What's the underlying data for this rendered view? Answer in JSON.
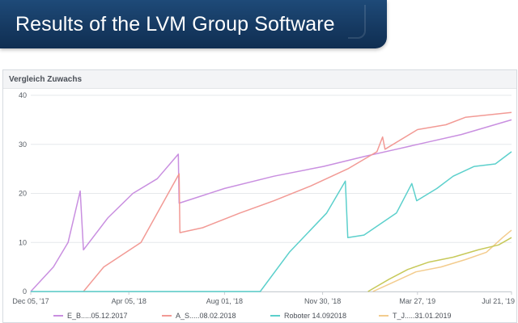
{
  "header": {
    "title": "Results of the LVM Group Software"
  },
  "panel": {
    "title": "Vergleich Zuwachs"
  },
  "chart_data": {
    "type": "line",
    "title": "Vergleich Zuwachs",
    "xlabel": "",
    "ylabel": "",
    "ylim": [
      0,
      40
    ],
    "yticks": [
      0,
      10,
      20,
      30,
      40
    ],
    "xlim": [
      "2017-12-05",
      "2019-07-21"
    ],
    "xticks": [
      {
        "date": "2017-12-05",
        "label": "Dec 05, '17"
      },
      {
        "date": "2018-04-05",
        "label": "Apr 05, '18"
      },
      {
        "date": "2018-08-01",
        "label": "Aug 01, '18"
      },
      {
        "date": "2018-11-30",
        "label": "Nov 30, '18"
      },
      {
        "date": "2019-03-27",
        "label": "Mar 27, '19"
      },
      {
        "date": "2019-07-21",
        "label": "Jul 21, '19"
      }
    ],
    "grid": true,
    "legend_position": "bottom",
    "series": [
      {
        "name": "E_B.....05.12.2017",
        "color": "#c98fe0",
        "points": [
          [
            "2017-12-05",
            0
          ],
          [
            "2018-01-02",
            5
          ],
          [
            "2018-01-20",
            10
          ],
          [
            "2018-02-04",
            20.5
          ],
          [
            "2018-02-08",
            8.5
          ],
          [
            "2018-03-10",
            15
          ],
          [
            "2018-04-10",
            20
          ],
          [
            "2018-05-10",
            23
          ],
          [
            "2018-06-05",
            28
          ],
          [
            "2018-06-06",
            18
          ],
          [
            "2018-08-01",
            21
          ],
          [
            "2018-10-01",
            23.5
          ],
          [
            "2018-12-01",
            25.5
          ],
          [
            "2019-01-20",
            27.5
          ],
          [
            "2019-03-01",
            29
          ],
          [
            "2019-04-10",
            30.5
          ],
          [
            "2019-05-20",
            32
          ],
          [
            "2019-07-21",
            35
          ]
        ]
      },
      {
        "name": "A_S.....08.02.2018",
        "color": "#f29a95",
        "points": [
          [
            "2018-02-08",
            0
          ],
          [
            "2018-03-05",
            5
          ],
          [
            "2018-04-20",
            10
          ],
          [
            "2018-06-06",
            24
          ],
          [
            "2018-06-07",
            12
          ],
          [
            "2018-07-05",
            13
          ],
          [
            "2018-08-20",
            16
          ],
          [
            "2018-10-01",
            18.5
          ],
          [
            "2018-11-15",
            21.5
          ],
          [
            "2018-12-31",
            25
          ],
          [
            "2019-02-05",
            28.5
          ],
          [
            "2019-02-12",
            31.5
          ],
          [
            "2019-02-15",
            29
          ],
          [
            "2019-03-27",
            33
          ],
          [
            "2019-05-01",
            34
          ],
          [
            "2019-05-25",
            35.5
          ],
          [
            "2019-07-21",
            36.5
          ]
        ]
      },
      {
        "name": "Roboter 14.092018",
        "color": "#5cd0cc",
        "points": [
          [
            "2017-12-05",
            0
          ],
          [
            "2018-09-14",
            0
          ],
          [
            "2018-10-20",
            8
          ],
          [
            "2018-12-05",
            16
          ],
          [
            "2018-12-28",
            22.5
          ],
          [
            "2018-12-31",
            11
          ],
          [
            "2019-01-20",
            11.5
          ],
          [
            "2019-03-01",
            16
          ],
          [
            "2019-03-20",
            22
          ],
          [
            "2019-03-26",
            18.5
          ],
          [
            "2019-04-20",
            21
          ],
          [
            "2019-05-10",
            23.5
          ],
          [
            "2019-06-05",
            25.5
          ],
          [
            "2019-07-01",
            26
          ],
          [
            "2019-07-21",
            28.5
          ]
        ]
      },
      {
        "name": "T_J.....31.01.2019",
        "color": "#f3cc8e",
        "points": [
          [
            "2019-01-31",
            0
          ],
          [
            "2019-02-20",
            1.5
          ],
          [
            "2019-03-25",
            4
          ],
          [
            "2019-04-25",
            5
          ],
          [
            "2019-05-25",
            6.5
          ],
          [
            "2019-06-20",
            8
          ],
          [
            "2019-07-10",
            11
          ],
          [
            "2019-07-21",
            12.5
          ]
        ]
      },
      {
        "name": "",
        "color": "#c7c95a",
        "points": [
          [
            "2019-01-25",
            0
          ],
          [
            "2019-02-20",
            2.5
          ],
          [
            "2019-03-15",
            4.5
          ],
          [
            "2019-04-10",
            6
          ],
          [
            "2019-05-10",
            7
          ],
          [
            "2019-06-10",
            8.5
          ],
          [
            "2019-07-05",
            9.5
          ],
          [
            "2019-07-21",
            11
          ]
        ]
      }
    ]
  }
}
